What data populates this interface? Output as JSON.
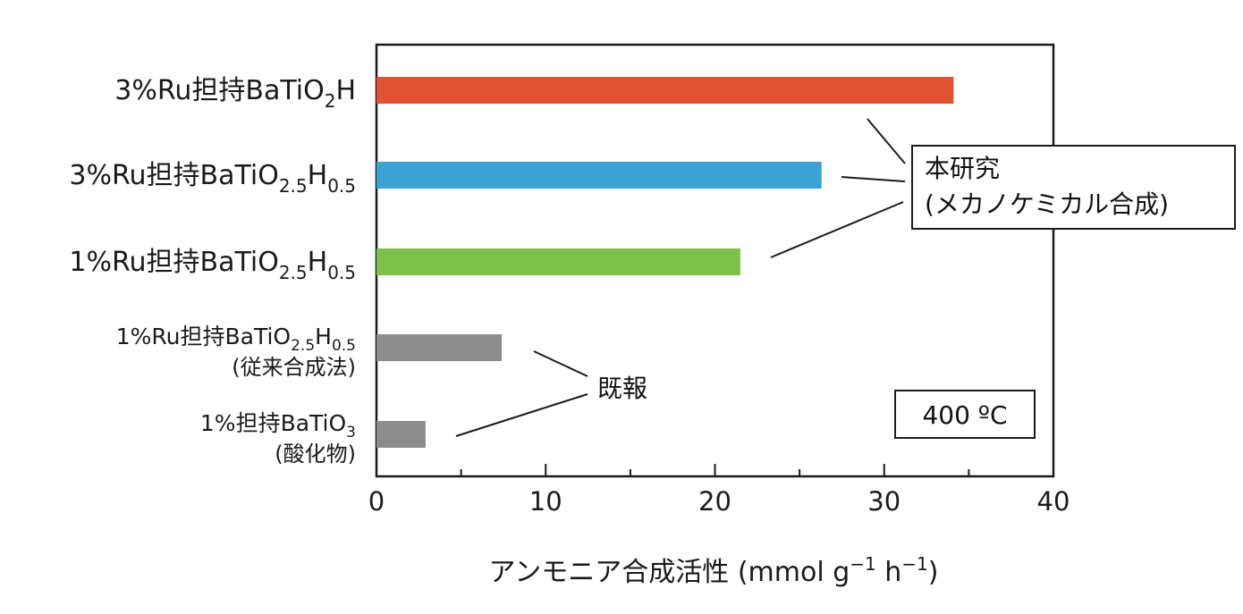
{
  "chart_data": {
    "type": "bar",
    "orientation": "horizontal",
    "categories": [
      {
        "pre": "3%Ru担持BaTiO",
        "sub1": "2",
        "mid": "H",
        "sub2": "",
        "line2": ""
      },
      {
        "pre": "3%Ru担持BaTiO",
        "sub1": "2.5",
        "mid": "H",
        "sub2": "0.5",
        "line2": ""
      },
      {
        "pre": "1%Ru担持BaTiO",
        "sub1": "2.5",
        "mid": "H",
        "sub2": "0.5",
        "line2": ""
      },
      {
        "pre": "1%Ru担持BaTiO",
        "sub1": "2.5",
        "mid": "H",
        "sub2": "0.5",
        "line2": "(従来合成法)"
      },
      {
        "pre": "1%担持BaTiO",
        "sub1": "3",
        "mid": "",
        "sub2": "",
        "line2": "(酸化物)"
      }
    ],
    "values": [
      34.1,
      26.3,
      21.5,
      7.4,
      2.9
    ],
    "colors": [
      "#e05230",
      "#3aa3d6",
      "#7dc04a",
      "#8c8c8c",
      "#8c8c8c"
    ],
    "xlim": [
      0,
      40
    ],
    "xticks": [
      "0",
      "10",
      "20",
      "30",
      "40"
    ],
    "xlabel": {
      "main": "アンモニア合成活性 (mmol g",
      "sup1": "−1",
      "mid": " h",
      "sup2": "−1",
      "end": ")"
    },
    "annotations": {
      "this_work": {
        "line1": "本研究",
        "line2": "(メカノケミカル合成)"
      },
      "previous": "既報",
      "temperature": "400 ºC"
    },
    "grid": false
  }
}
